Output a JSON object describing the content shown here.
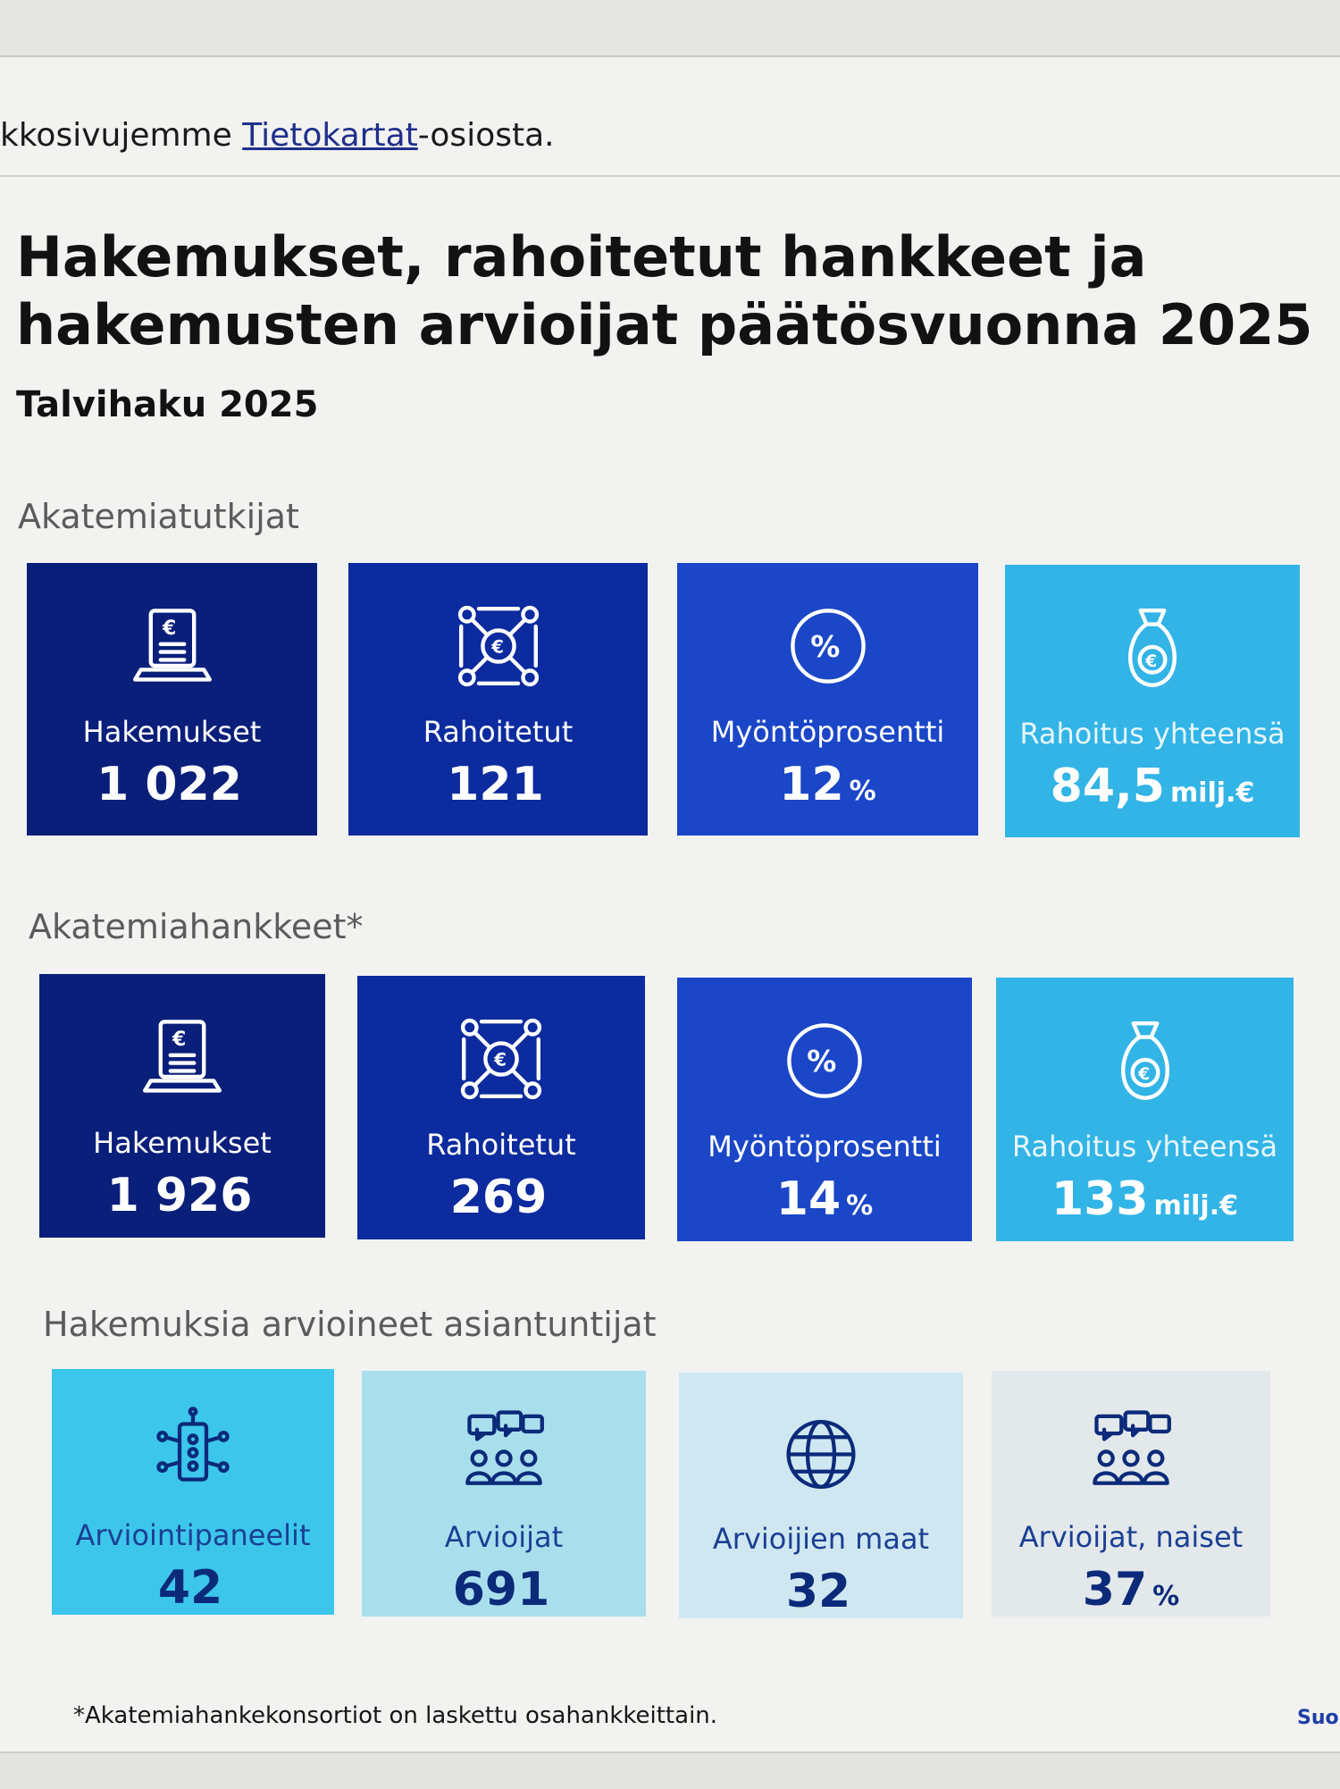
{
  "intro": {
    "text_before": "kkosivujemme ",
    "link_text": "Tietokartat",
    "text_after": "-osiosta."
  },
  "title": "Hakemukset, rahoitetut hankkeet ja hakemusten arvioijat päätösvuonna 2025",
  "subtitle": "Talvihaku 2025",
  "sections": [
    {
      "label": "Akatemiatutkijat",
      "cards": [
        {
          "icon": "laptop-euro-icon",
          "label": "Hakemukset",
          "value": "1 022",
          "unit": ""
        },
        {
          "icon": "euro-network-icon",
          "label": "Rahoitetut",
          "value": "121",
          "unit": ""
        },
        {
          "icon": "percent-circle-icon",
          "label": "Myöntöprosentti",
          "value": "12",
          "unit": "%"
        },
        {
          "icon": "money-bag-icon",
          "label": "Rahoitus yhteensä",
          "value": "84,5",
          "unit": "milj.€"
        }
      ]
    },
    {
      "label": "Akatemiahankkeet*",
      "cards": [
        {
          "icon": "laptop-euro-icon",
          "label": "Hakemukset",
          "value": "1 926",
          "unit": ""
        },
        {
          "icon": "euro-network-icon",
          "label": "Rahoitetut",
          "value": "269",
          "unit": ""
        },
        {
          "icon": "percent-circle-icon",
          "label": "Myöntöprosentti",
          "value": "14",
          "unit": "%"
        },
        {
          "icon": "money-bag-icon",
          "label": "Rahoitus yhteensä",
          "value": "133",
          "unit": "milj.€"
        }
      ]
    },
    {
      "label": "Hakemuksia arvioineet asiantuntijat",
      "cards": [
        {
          "icon": "panel-network-icon",
          "label": "Arviointipaneelit",
          "value": "42",
          "unit": ""
        },
        {
          "icon": "people-chat-icon",
          "label": "Arvioijat",
          "value": "691",
          "unit": ""
        },
        {
          "icon": "globe-icon",
          "label": "Arvioijien maat",
          "value": "32",
          "unit": ""
        },
        {
          "icon": "people-chat-icon",
          "label": "Arvioijat, naiset",
          "value": "37",
          "unit": "%"
        }
      ]
    }
  ],
  "footnote": "*Akatemiahankekonsortiot on laskettu osahankkeittain.",
  "more_link": "Suor",
  "colors": {
    "dark_navy": "#0a1f7a",
    "navy": "#0c2b9e",
    "blue": "#1a46c7",
    "cyan": "#32b4e6",
    "light_cyan": "#3cc6ec",
    "pale_cyan": "#a9dfec",
    "pale_blue": "#cfe7f0",
    "light_gray": "#e3e8ea"
  }
}
